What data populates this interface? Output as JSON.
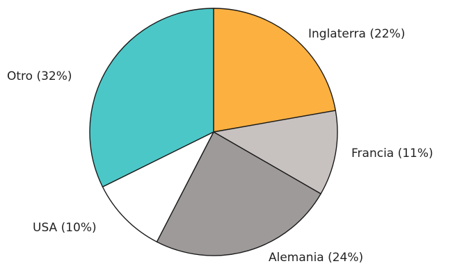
{
  "chart_data": {
    "type": "pie",
    "start_angle_deg": 0,
    "direction": "clockwise",
    "slices": [
      {
        "label": "Inglaterra (22%)",
        "value": 22,
        "color": "#fbb040"
      },
      {
        "label": "Francia (11%)",
        "value": 11,
        "color": "#c7c2c0"
      },
      {
        "label": "Alemania (24%)",
        "value": 24,
        "color": "#9e9a99"
      },
      {
        "label": "USA (10%)",
        "value": 10,
        "color": "#ffffff"
      },
      {
        "label": "Otro (32%)",
        "value": 32,
        "color": "#4cc7c7"
      }
    ]
  }
}
